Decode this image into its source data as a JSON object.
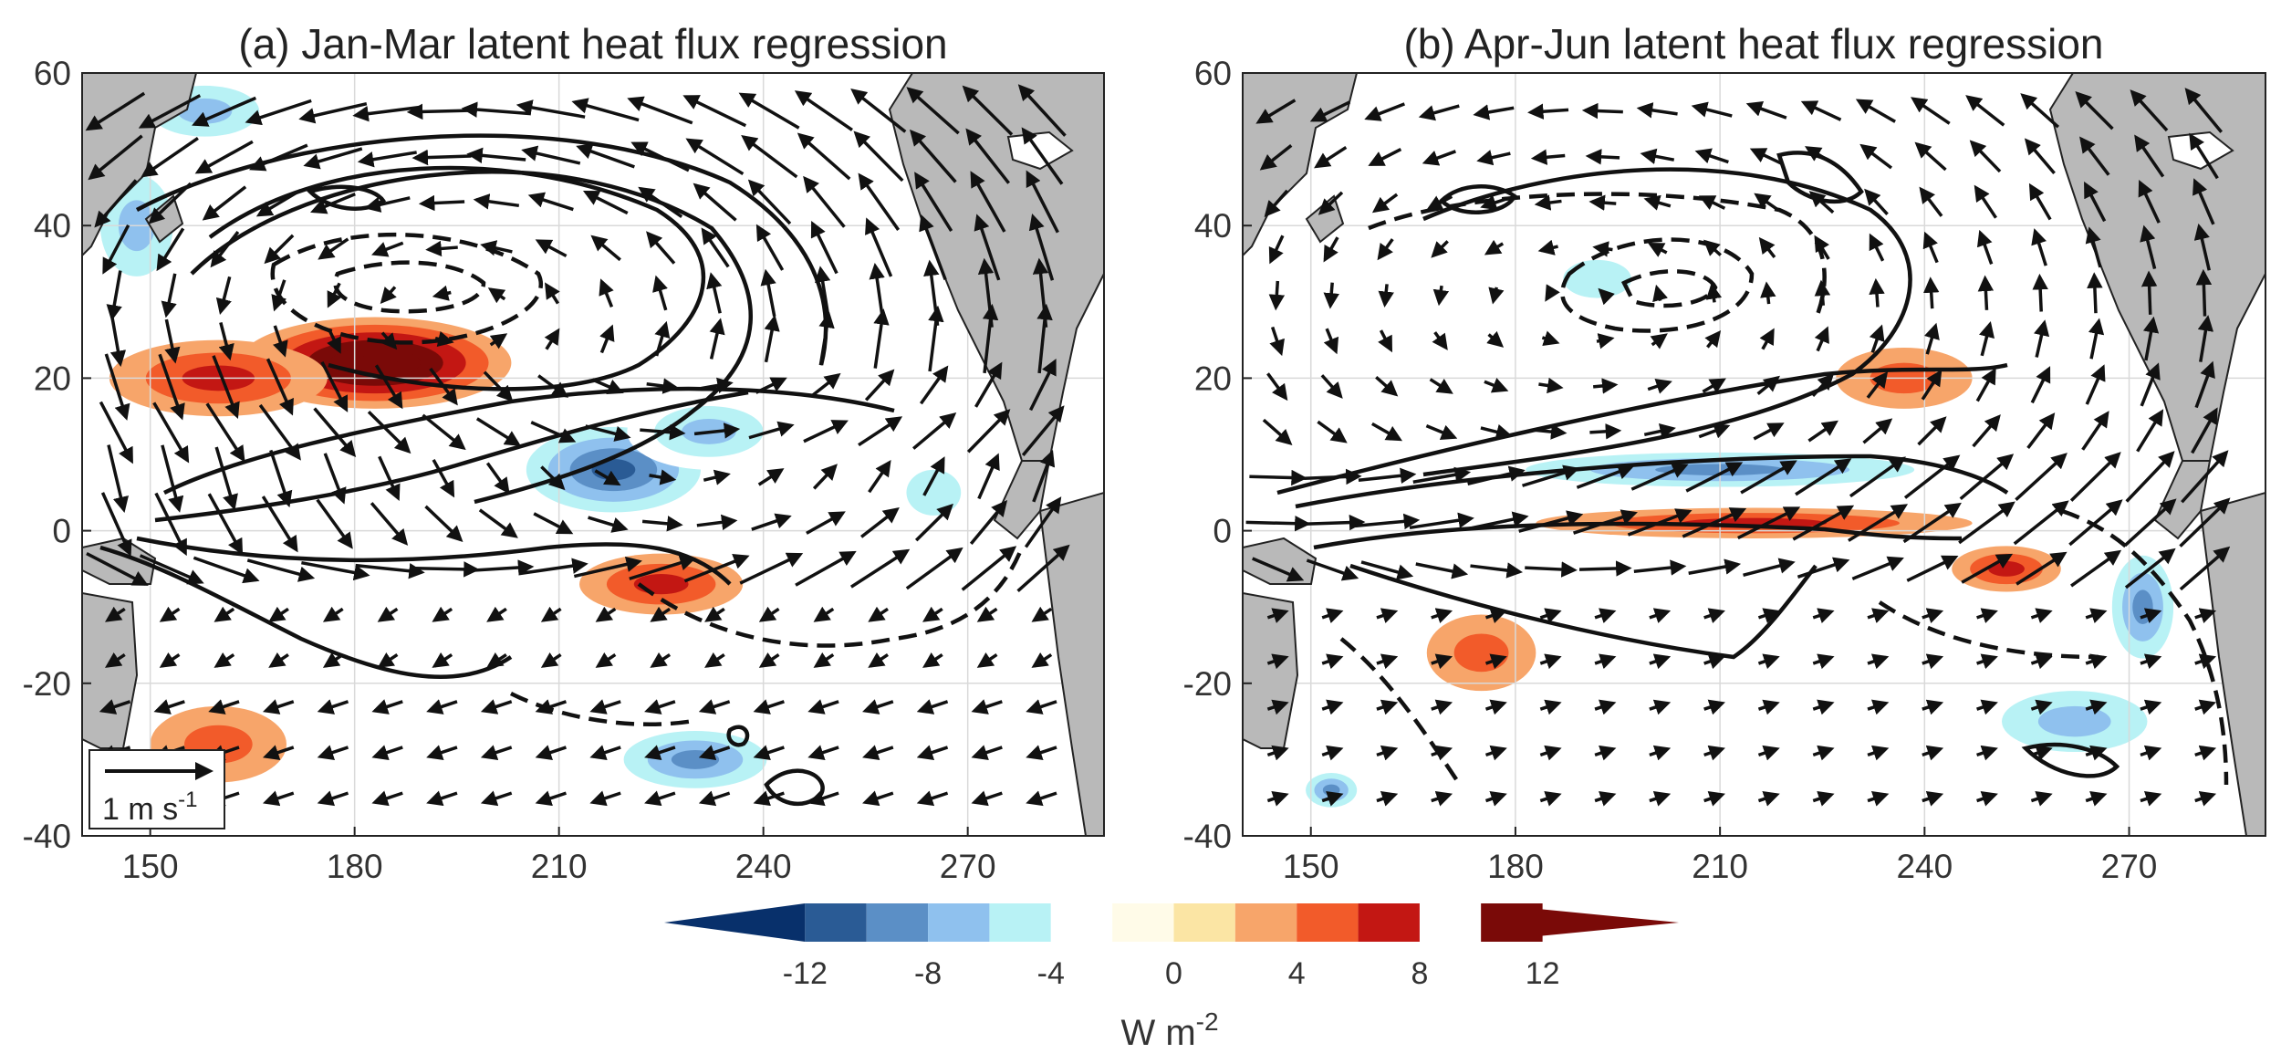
{
  "figure": {
    "panels": [
      {
        "id": "a",
        "title": "(a) Jan-Mar latent heat flux regression"
      },
      {
        "id": "b",
        "title": "(b) Apr-Jun latent heat flux regression"
      }
    ],
    "colorbar": {
      "label_main": "W m",
      "label_exp": "-2",
      "colors": [
        "#08306b",
        "#2a5b95",
        "#5b8fc6",
        "#8fc1ee",
        "#b8f2f5",
        "#ffffff",
        "#fffbe8",
        "#fbe5a4",
        "#f7a56a",
        "#f25b2a",
        "#c31713",
        "#7a0a08"
      ]
    },
    "scale_arrow": {
      "label": "1 m s",
      "exp": "-1"
    },
    "colors": {
      "land": "#b9b9b9",
      "grid": "#d9d9d9",
      "contour": "#111111"
    }
  },
  "chart_data": {
    "type": "heatmap",
    "variable": "latent heat flux regression",
    "units": "W m-2",
    "x_ticks": [
      "150",
      "180",
      "210",
      "240",
      "270"
    ],
    "y_ticks": [
      "60",
      "40",
      "20",
      "0",
      "-20",
      "-40"
    ],
    "x_range": [
      140,
      290
    ],
    "y_range": [
      -40,
      60
    ],
    "colorbar_ticks": [
      "-12",
      "-8",
      "-4",
      "0",
      "4",
      "8",
      "12"
    ],
    "colorbar_range": [
      -14,
      14
    ],
    "overlays": [
      "wind anomaly vectors",
      "solid and dashed contours"
    ],
    "panels": [
      {
        "title": "(a) Jan-Mar latent heat flux regression",
        "anomalies": [
          {
            "lon": 183,
            "lat": 22,
            "value": 11,
            "rlon": 20,
            "rlat": 6
          },
          {
            "lon": 160,
            "lat": 20,
            "value": 5,
            "rlon": 16,
            "rlat": 5
          },
          {
            "lon": 218,
            "lat": 8,
            "value": -9,
            "rlon": 16,
            "rlat": 7
          },
          {
            "lon": 232,
            "lat": 13,
            "value": -6,
            "rlon": 12,
            "rlat": 5
          },
          {
            "lon": 148,
            "lat": 40,
            "value": -6,
            "rlon": 8,
            "rlat": 10
          },
          {
            "lon": 158,
            "lat": 55,
            "value": -6,
            "rlon": 12,
            "rlat": 5
          },
          {
            "lon": 225,
            "lat": -7,
            "value": 6,
            "rlon": 12,
            "rlat": 4
          },
          {
            "lon": 230,
            "lat": -30,
            "value": -7,
            "rlon": 14,
            "rlat": 5
          },
          {
            "lon": 160,
            "lat": -28,
            "value": 4,
            "rlon": 10,
            "rlat": 5
          },
          {
            "lon": 265,
            "lat": 5,
            "value": -4,
            "rlon": 8,
            "rlat": 6
          }
        ]
      },
      {
        "title": "(b) Apr-Jun latent heat flux regression",
        "anomalies": [
          {
            "lon": 210,
            "lat": 8,
            "value": -8,
            "rlon": 38,
            "rlat": 3
          },
          {
            "lon": 215,
            "lat": 1,
            "value": 5,
            "rlon": 32,
            "rlat": 2
          },
          {
            "lon": 237,
            "lat": 20,
            "value": 4,
            "rlon": 10,
            "rlat": 4
          },
          {
            "lon": 252,
            "lat": -5,
            "value": 6,
            "rlon": 8,
            "rlat": 3
          },
          {
            "lon": 272,
            "lat": -10,
            "value": -7,
            "rlon": 6,
            "rlat": 9
          },
          {
            "lon": 262,
            "lat": -25,
            "value": -5,
            "rlon": 16,
            "rlat": 6
          },
          {
            "lon": 175,
            "lat": -16,
            "value": 4,
            "rlon": 8,
            "rlat": 5
          },
          {
            "lon": 153,
            "lat": -34,
            "value": -7,
            "rlon": 5,
            "rlat": 3
          },
          {
            "lon": 192,
            "lat": 33,
            "value": -3,
            "rlon": 10,
            "rlat": 5
          }
        ]
      }
    ]
  }
}
